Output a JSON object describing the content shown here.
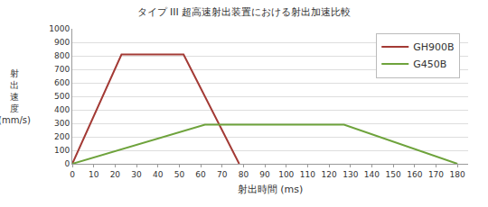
{
  "chart_data": {
    "type": "line",
    "title": "タイプ III 超高速射出装置における射出加速比較",
    "x_label": "射出時間 (ms)",
    "y_label": "射出速度 (mm/s)",
    "series": [
      {
        "name": "GH900B",
        "color": "#a33a35",
        "x": [
          0,
          23,
          52,
          78
        ],
        "values": [
          0,
          810,
          810,
          0
        ]
      },
      {
        "name": "G450B",
        "color": "#6ea33c",
        "x": [
          0,
          62,
          127,
          180
        ],
        "values": [
          0,
          290,
          290,
          0
        ]
      }
    ],
    "xlim": [
      0,
      185
    ],
    "xticks": [
      0,
      10,
      20,
      30,
      40,
      50,
      60,
      70,
      80,
      90,
      100,
      110,
      120,
      130,
      140,
      150,
      160,
      170,
      180
    ],
    "ylim": [
      0,
      1000
    ],
    "yticks": [
      0,
      100,
      200,
      300,
      400,
      500,
      600,
      700,
      800,
      900,
      1000
    ],
    "grid": true,
    "legend": "top-right"
  }
}
